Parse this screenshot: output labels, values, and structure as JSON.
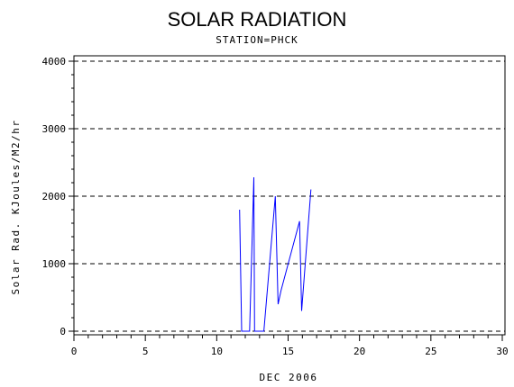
{
  "chart_data": {
    "type": "line",
    "title": "SOLAR RADIATION",
    "subtitle": "STATION=PHCK",
    "xlabel": "DEC 2006",
    "ylabel": "Solar Rad. KJoules/M2/hr",
    "xlim": [
      0,
      30
    ],
    "ylim": [
      0,
      4000
    ],
    "x_ticks": [
      0,
      5,
      10,
      15,
      20,
      25,
      30
    ],
    "y_ticks": [
      0,
      1000,
      2000,
      3000,
      4000
    ],
    "grid": "horizontal dashed",
    "series": [
      {
        "color": "#0000ff",
        "points": [
          [
            11.6,
            1800
          ],
          [
            11.75,
            0
          ],
          [
            12.3,
            0
          ],
          [
            12.6,
            2280
          ],
          [
            12.65,
            0
          ],
          [
            13.3,
            0
          ],
          [
            14.1,
            2000
          ],
          [
            14.3,
            400
          ],
          [
            14.5,
            600
          ],
          [
            15.8,
            1630
          ],
          [
            15.95,
            300
          ],
          [
            16.6,
            2100
          ]
        ]
      }
    ]
  }
}
